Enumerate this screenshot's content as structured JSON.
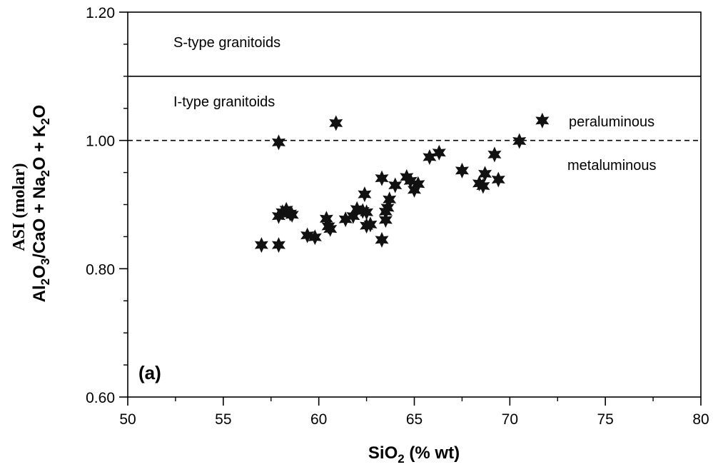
{
  "chart_data": {
    "type": "scatter",
    "panel_label": "(a)",
    "xlabel": {
      "base": "SiO",
      "sub": "2",
      "rest": " (% wt)"
    },
    "ylabel_line1": "ASI (molar)",
    "ylabel_line2": [
      {
        "t": "Al",
        "sub": false
      },
      {
        "t": "2",
        "sub": true
      },
      {
        "t": "O",
        "sub": false
      },
      {
        "t": "3",
        "sub": true
      },
      {
        "t": "/CaO + Na",
        "sub": false
      },
      {
        "t": "2",
        "sub": true
      },
      {
        "t": "O + K",
        "sub": false
      },
      {
        "t": "2",
        "sub": true
      },
      {
        "t": "O",
        "sub": false
      }
    ],
    "xlim": [
      50,
      80
    ],
    "ylim": [
      0.6,
      1.2
    ],
    "x_ticks": [
      50,
      55,
      60,
      65,
      70,
      75,
      80
    ],
    "x_tick_labels": [
      "50",
      "55",
      "60",
      "65",
      "70",
      "75",
      "80"
    ],
    "y_ticks": [
      0.6,
      0.8,
      1.0,
      1.2
    ],
    "y_tick_labels": [
      "0.60",
      "0.80",
      "1.00",
      "1.20"
    ],
    "reference_lines": [
      {
        "y": 1.1,
        "style": "solid"
      },
      {
        "y": 1.0,
        "style": "dashed"
      }
    ],
    "zone_labels": [
      "S-type granitoids",
      "I-type granitoids",
      "peraluminous",
      "metaluminous"
    ],
    "points": [
      [
        57.0,
        0.837
      ],
      [
        57.9,
        0.837
      ],
      [
        57.9,
        0.997
      ],
      [
        60.9,
        1.027
      ],
      [
        57.9,
        0.882
      ],
      [
        58.1,
        0.888
      ],
      [
        58.3,
        0.892
      ],
      [
        58.5,
        0.886
      ],
      [
        58.6,
        0.884
      ],
      [
        59.4,
        0.852
      ],
      [
        59.8,
        0.849
      ],
      [
        60.4,
        0.878
      ],
      [
        60.5,
        0.866
      ],
      [
        60.6,
        0.862
      ],
      [
        61.4,
        0.877
      ],
      [
        61.8,
        0.882
      ],
      [
        62.0,
        0.893
      ],
      [
        62.3,
        0.89
      ],
      [
        62.5,
        0.888
      ],
      [
        62.4,
        0.916
      ],
      [
        62.5,
        0.867
      ],
      [
        62.7,
        0.869
      ],
      [
        63.3,
        0.941
      ],
      [
        63.3,
        0.845
      ],
      [
        63.5,
        0.876
      ],
      [
        63.5,
        0.889
      ],
      [
        63.6,
        0.895
      ],
      [
        63.7,
        0.908
      ],
      [
        64.0,
        0.93
      ],
      [
        64.6,
        0.943
      ],
      [
        64.8,
        0.937
      ],
      [
        65.0,
        0.923
      ],
      [
        65.2,
        0.932
      ],
      [
        65.8,
        0.974
      ],
      [
        66.3,
        0.981
      ],
      [
        67.5,
        0.953
      ],
      [
        68.4,
        0.933
      ],
      [
        68.6,
        0.929
      ],
      [
        68.7,
        0.948
      ],
      [
        69.2,
        0.978
      ],
      [
        69.4,
        0.939
      ],
      [
        70.5,
        0.999
      ],
      [
        71.7,
        1.031
      ]
    ]
  }
}
